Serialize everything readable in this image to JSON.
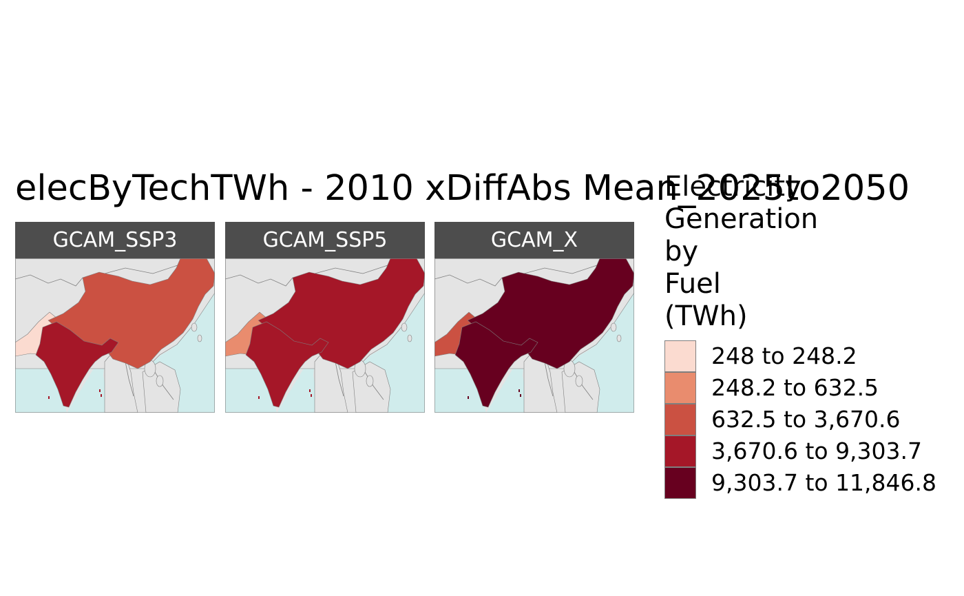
{
  "title": "elecByTechTWh - 2010 xDiffAbs Mean_2025to2050",
  "legend": {
    "title_lines": [
      "Electricity",
      "Generation",
      "by",
      "Fuel",
      "(TWh)"
    ],
    "items": [
      {
        "label": "248 to 248.2",
        "color": "#fbdbd0"
      },
      {
        "label": "248.2 to 632.5",
        "color": "#e98c6e"
      },
      {
        "label": "632.5 to 3,670.6",
        "color": "#cb5142"
      },
      {
        "label": "3,670.6 to 9,303.7",
        "color": "#a51728"
      },
      {
        "label": "9,303.7 to 11,846.8",
        "color": "#67001f"
      }
    ]
  },
  "colors": {
    "land": "#e4e4e4",
    "ocean": "#d0ecec",
    "border": "#7f7f7f",
    "strip": "#4d4d4d"
  },
  "panels": [
    {
      "label": "GCAM_SSP3",
      "regions": {
        "pakistan": 0,
        "india": 3,
        "china": 2
      }
    },
    {
      "label": "GCAM_SSP5",
      "regions": {
        "pakistan": 1,
        "india": 3,
        "china": 3
      }
    },
    {
      "label": "GCAM_X",
      "regions": {
        "pakistan": 2,
        "india": 4,
        "china": 4
      }
    }
  ]
}
